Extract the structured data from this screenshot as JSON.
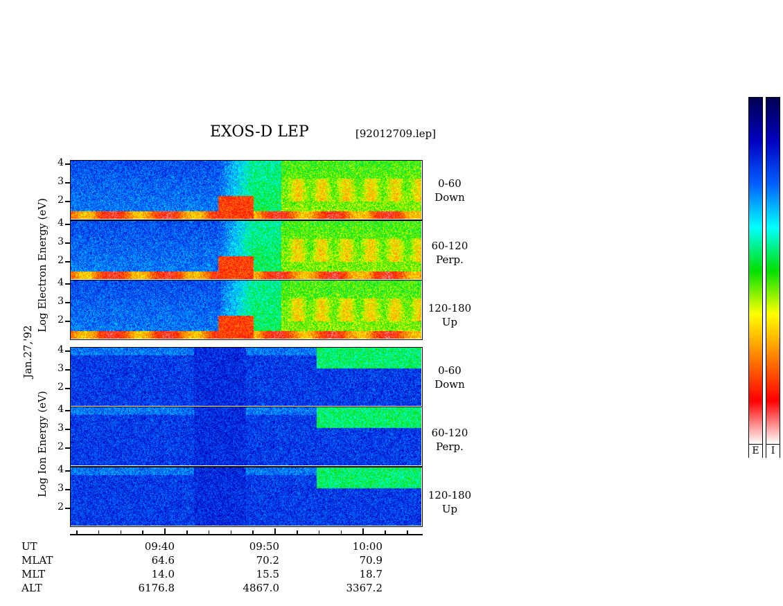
{
  "title": "EXOS-D LEP",
  "filename": "[92012709.lep]",
  "date_label": "Jan.27,'92",
  "electron_axis_label": "Log  Electron  Energy  (eV)",
  "ion_axis_label": "Log   Ion   Energy  (eV)",
  "panels": [
    {
      "id": "e-down",
      "species": "electron",
      "pitch": "0-60",
      "dir": "Down"
    },
    {
      "id": "e-perp",
      "species": "electron",
      "pitch": "60-120",
      "dir": "Perp."
    },
    {
      "id": "e-up",
      "species": "electron",
      "pitch": "120-180",
      "dir": "Up"
    },
    {
      "id": "i-down",
      "species": "ion",
      "pitch": "0-60",
      "dir": "Down"
    },
    {
      "id": "i-perp",
      "species": "ion",
      "pitch": "60-120",
      "dir": "Perp."
    },
    {
      "id": "i-up",
      "species": "ion",
      "pitch": "120-180",
      "dir": "Up"
    }
  ],
  "y_ticks": [
    "4",
    "3",
    "2"
  ],
  "time_axis": {
    "row_names": [
      "UT",
      "MLAT",
      "MLT",
      "ALT"
    ],
    "columns": [
      {
        "UT": "09:40",
        "MLAT": "64.6",
        "MLT": "14.0",
        "ALT": "6176.8"
      },
      {
        "UT": "09:50",
        "MLAT": "70.2",
        "MLT": "15.5",
        "ALT": "4867.0"
      },
      {
        "UT": "10:00",
        "MLAT": "70.9",
        "MLT": "18.7",
        "ALT": "3367.2"
      }
    ]
  },
  "colorbars": [
    {
      "label": "E"
    },
    {
      "label": "I"
    }
  ],
  "chart_data": {
    "type": "heatmap",
    "title": "EXOS-D LEP",
    "xlabel": "UT",
    "ylabel": "Log Energy (eV)",
    "x_ticks": [
      "09:40",
      "09:50",
      "10:00"
    ],
    "y_ticks": [
      2,
      3,
      4
    ],
    "ylim": [
      1.3,
      4.1
    ],
    "series": [
      {
        "name": "0-60 Down"
      },
      {
        "name": "60-120 Perp."
      },
      {
        "name": "120-180 Up"
      },
      {
        "name": "0-60 Down"
      },
      {
        "name": "60-120 Perp."
      },
      {
        "name": "120-180 Up"
      }
    ],
    "colormap": [
      "#ffffff",
      "#ff0000",
      "#ff8000",
      "#ffff00",
      "#00e000",
      "#00ffff",
      "#0060ff",
      "#0000c0",
      "#000050"
    ]
  }
}
